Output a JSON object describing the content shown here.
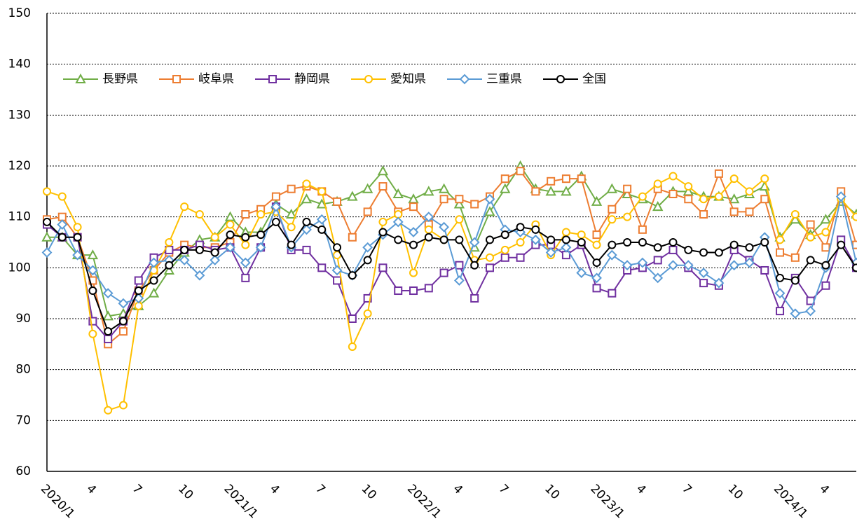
{
  "chart_data": {
    "type": "line",
    "categories": [
      "2020/1",
      null,
      null,
      "4",
      null,
      null,
      "7",
      null,
      null,
      "10",
      null,
      null,
      "2021/1",
      null,
      null,
      "4",
      null,
      null,
      "7",
      null,
      null,
      "10",
      null,
      null,
      "2022/1",
      null,
      null,
      "4",
      null,
      null,
      "7",
      null,
      null,
      "10",
      null,
      null,
      "2023/1",
      null,
      null,
      "4",
      null,
      null,
      "7",
      null,
      null,
      "10",
      null,
      null,
      "2024/1",
      null,
      null,
      "4",
      null,
      null
    ],
    "ylim": [
      60,
      150
    ],
    "yticks": [
      60,
      70,
      80,
      90,
      100,
      110,
      120,
      130,
      140,
      150
    ],
    "grid": true,
    "legend": "top-left",
    "series": [
      {
        "name": "長野県",
        "color": "#70ad47",
        "marker": "triangle",
        "values": [
          106,
          106,
          102.5,
          102.5,
          90.5,
          91,
          92.5,
          95,
          99.5,
          103,
          105.5,
          106,
          110,
          107,
          107,
          112.5,
          110.5,
          113.5,
          112.5,
          113,
          114,
          115.5,
          119,
          114.5,
          113.5,
          115,
          115.5,
          112.5,
          104,
          111,
          115.5,
          120,
          115.5,
          115,
          115,
          118,
          113,
          115.5,
          114.5,
          113.5,
          112,
          115,
          115,
          114,
          114,
          113.5,
          114.5,
          116,
          106,
          109.5,
          106.5,
          109.5,
          113,
          110.5
        ]
      },
      {
        "name": "岐阜県",
        "color": "#ed7d31",
        "marker": "square",
        "values": [
          109.5,
          110,
          106,
          97.5,
          85,
          87.5,
          95.5,
          99.5,
          103,
          104.5,
          104,
          104,
          105,
          110.5,
          111.5,
          114,
          115.5,
          116,
          115,
          113,
          106,
          111,
          116,
          111,
          112,
          108.5,
          113.5,
          113.5,
          112.5,
          114,
          117.5,
          119,
          115,
          117,
          117.5,
          117.5,
          106.5,
          111.5,
          115.5,
          107.5,
          115.5,
          114.5,
          113.5,
          110.5,
          118.5,
          111,
          111,
          113.5,
          103,
          102,
          108.5,
          104,
          115,
          104.5
        ]
      },
      {
        "name": "静岡県",
        "color": "#7030a0",
        "marker": "square",
        "values": [
          108.5,
          106,
          106,
          89.5,
          86,
          89.5,
          97.5,
          102,
          103.5,
          103.5,
          104.5,
          103.5,
          104,
          98,
          104,
          112,
          103.5,
          103.5,
          100,
          97.5,
          90,
          94,
          100,
          95.5,
          95.5,
          96,
          99,
          100.5,
          94,
          100,
          102,
          102,
          104.5,
          104.5,
          102.5,
          104.5,
          96,
          95,
          99.5,
          100,
          101.5,
          103.5,
          100,
          97,
          96.5,
          103.5,
          101.5,
          99.5,
          91.5,
          98,
          93.5,
          96.5,
          105.5,
          100
        ]
      },
      {
        "name": "愛知県",
        "color": "#ffc000",
        "marker": "circle",
        "values": [
          115,
          114,
          108,
          87,
          72,
          73,
          92.5,
          99.5,
          105,
          112,
          110.5,
          106,
          108.5,
          104.5,
          110.5,
          111,
          108,
          116.5,
          115,
          102.5,
          84.5,
          91,
          109,
          110.5,
          99,
          107.5,
          105.5,
          109.5,
          101.5,
          102,
          103.5,
          105,
          108.5,
          102.5,
          107,
          106.5,
          104.5,
          109.5,
          110,
          114,
          116.5,
          118,
          116,
          113.5,
          114,
          117.5,
          115,
          117.5,
          105.5,
          110.5,
          106,
          107,
          113.5,
          110
        ]
      },
      {
        "name": "三重県",
        "color": "#5b9bd5",
        "marker": "diamond",
        "values": [
          103,
          108.5,
          102.5,
          99.5,
          95,
          93,
          94,
          101,
          101.5,
          101.5,
          98.5,
          101.5,
          104,
          101,
          104,
          112,
          104,
          107.5,
          109.5,
          99.5,
          98.5,
          104,
          106.5,
          109,
          107,
          110,
          108,
          97.5,
          105,
          113.5,
          107.5,
          107,
          105.5,
          103,
          104,
          99,
          98,
          102.5,
          100.5,
          101,
          98,
          100.5,
          100.5,
          99,
          97,
          100.5,
          101,
          106,
          95,
          91,
          91.5,
          100,
          114,
          101
        ]
      },
      {
        "name": "全国",
        "color": "#000000",
        "marker": "circle",
        "values": [
          109,
          106,
          106,
          95.5,
          87.5,
          89.5,
          95.5,
          97.5,
          100.5,
          103.5,
          103.5,
          103,
          106.5,
          106,
          106.5,
          109,
          104.5,
          109,
          107.5,
          104,
          98.5,
          101.5,
          107,
          105.5,
          104.5,
          106,
          105.5,
          105.5,
          100.5,
          105.5,
          106.5,
          108,
          107.5,
          105.5,
          105.5,
          105,
          101,
          104.5,
          105,
          105,
          104,
          105,
          103.5,
          103,
          103,
          104.5,
          104,
          105,
          98,
          97.5,
          101.5,
          100.5,
          104.5,
          100
        ]
      }
    ]
  }
}
